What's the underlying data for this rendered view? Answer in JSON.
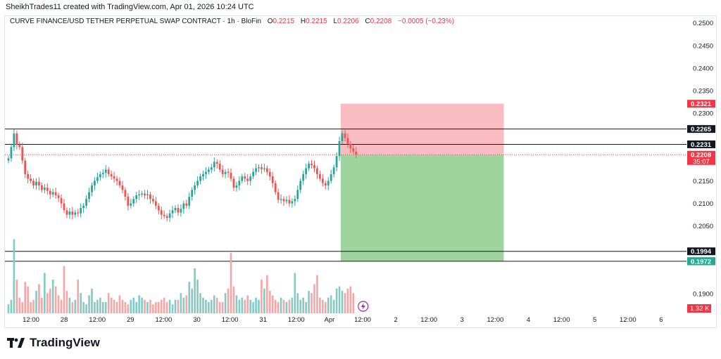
{
  "header": {
    "text": "SheikhTrades11 created with TradingView.com, Apr 01, 2026 10:24 UTC"
  },
  "legend": {
    "symbol": "CURVE FINANCE/USD TETHER PERPETUAL SWAP CONTRACT · 1h · BloFin",
    "open_label": "O",
    "open": "0.2215",
    "high_label": "H",
    "high": "0.2215",
    "low_label": "L",
    "low": "0.2206",
    "close_label": "C",
    "close": "0.2208",
    "change": "−0.0005 (−0.23%)"
  },
  "brand": {
    "name": "TradingView"
  },
  "colors": {
    "up": "#26a69a",
    "down": "#ef5350",
    "vol_up": "#80cbc4",
    "vol_down": "#f5a6a6",
    "stop_zone": "#f9bcc3",
    "target_zone": "#9fd49e",
    "text": "#131722"
  },
  "chart_data": {
    "type": "candlestick",
    "interval": "1h",
    "ylim": [
      0.1855,
      0.2515
    ],
    "y_ticks": [
      "0.2500",
      "0.2450",
      "0.2400",
      "0.2350",
      "0.2300",
      "0.2150",
      "0.2100",
      "0.2050",
      "0.1900"
    ],
    "x_ticks": [
      "12:00",
      "28",
      "12:00",
      "29",
      "12:00",
      "30",
      "12:00",
      "31",
      "12:00",
      "Apr",
      "12:00",
      "2",
      "12:00",
      "3",
      "12:00",
      "4",
      "12:00",
      "5",
      "12:00",
      "6"
    ],
    "horizontal_lines": [
      0.2265,
      0.2231,
      0.1994,
      0.1972
    ],
    "current_price_line": 0.2208,
    "price_labels": [
      {
        "value": "0.2321",
        "style": "red"
      },
      {
        "value": "0.2265",
        "style": "black"
      },
      {
        "value": "0.2231",
        "style": "black"
      },
      {
        "value": "0.2208",
        "style": "red",
        "sub": "35:07"
      },
      {
        "value": "0.1994",
        "style": "black"
      },
      {
        "value": "0.1972",
        "style": "black"
      },
      {
        "value": "0.1972",
        "style": "green"
      }
    ],
    "volume_label": "1.32 K",
    "position": {
      "entry": 0.2208,
      "stop": 0.2321,
      "target": 0.1972,
      "start_index": 120,
      "end_index": 170
    },
    "closes": [
      0.22,
      0.2225,
      0.2255,
      0.223,
      0.2225,
      0.2195,
      0.2165,
      0.2155,
      0.215,
      0.214,
      0.2148,
      0.214,
      0.213,
      0.2135,
      0.2128,
      0.212,
      0.2125,
      0.2118,
      0.2112,
      0.21,
      0.2085,
      0.2075,
      0.2082,
      0.2075,
      0.208,
      0.2078,
      0.209,
      0.2095,
      0.211,
      0.2125,
      0.214,
      0.215,
      0.2158,
      0.2165,
      0.2168,
      0.2175,
      0.2165,
      0.216,
      0.2155,
      0.215,
      0.214,
      0.213,
      0.2115,
      0.2095,
      0.21,
      0.211,
      0.2118,
      0.212,
      0.2122,
      0.2118,
      0.212,
      0.211,
      0.2105,
      0.2095,
      0.2085,
      0.2075,
      0.2072,
      0.2068,
      0.2078,
      0.2085,
      0.209,
      0.208,
      0.2088,
      0.21,
      0.2095,
      0.2115,
      0.213,
      0.214,
      0.215,
      0.216,
      0.2165,
      0.217,
      0.2175,
      0.218,
      0.2192,
      0.2188,
      0.2175,
      0.2165,
      0.217,
      0.2168,
      0.2155,
      0.2135,
      0.214,
      0.215,
      0.216,
      0.2155,
      0.215,
      0.216,
      0.217,
      0.2178,
      0.218,
      0.2176,
      0.2178,
      0.217,
      0.216,
      0.2145,
      0.2125,
      0.2108,
      0.211,
      0.2105,
      0.2108,
      0.21,
      0.2105,
      0.211,
      0.213,
      0.215,
      0.2165,
      0.2178,
      0.2188,
      0.2185,
      0.2178,
      0.2165,
      0.2155,
      0.2145,
      0.214,
      0.215,
      0.2165,
      0.218,
      0.2205,
      0.2238,
      0.2255,
      0.2245,
      0.2232,
      0.2222,
      0.2215,
      0.2208
    ],
    "volumes": [
      8,
      12,
      66,
      30,
      14,
      10,
      28,
      24,
      10,
      12,
      20,
      26,
      14,
      36,
      18,
      22,
      30,
      24,
      16,
      12,
      42,
      20,
      14,
      10,
      12,
      30,
      18,
      10,
      8,
      16,
      22,
      10,
      12,
      14,
      10,
      10,
      18,
      14,
      12,
      10,
      16,
      12,
      10,
      8,
      12,
      14,
      10,
      16,
      14,
      12,
      10,
      12,
      8,
      10,
      10,
      12,
      14,
      10,
      12,
      8,
      12,
      12,
      18,
      14,
      16,
      28,
      22,
      40,
      30,
      18,
      14,
      12,
      10,
      12,
      16,
      14,
      10,
      10,
      18,
      22,
      54,
      24,
      16,
      12,
      14,
      12,
      16,
      12,
      10,
      14,
      12,
      30,
      22,
      34,
      20,
      16,
      12,
      10,
      14,
      12,
      10,
      12,
      14,
      36,
      18,
      12,
      14,
      10,
      20,
      18,
      26,
      34,
      14,
      12,
      10,
      14,
      16,
      12,
      22,
      24,
      20,
      18,
      22,
      24,
      18
    ]
  }
}
